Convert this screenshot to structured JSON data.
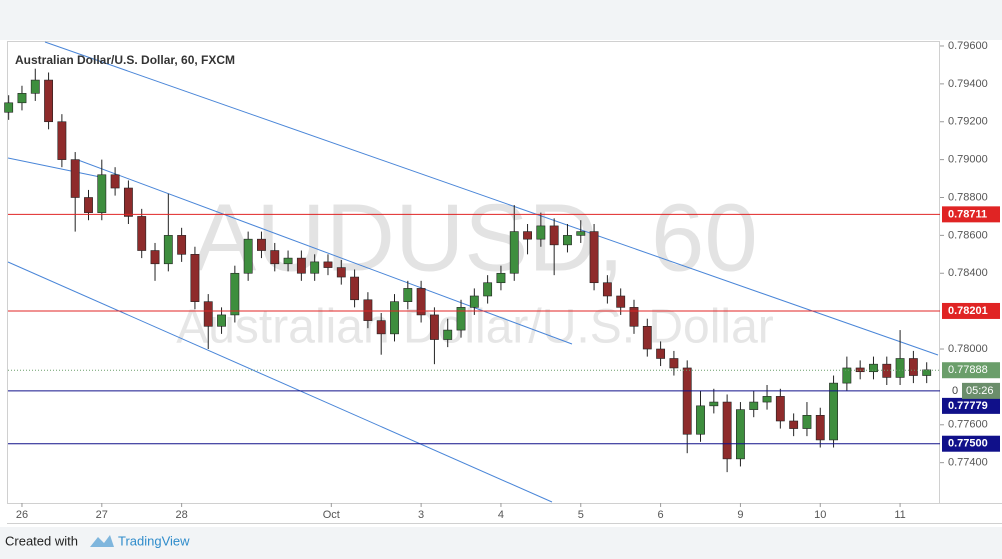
{
  "chart_data": {
    "type": "candlestick",
    "title": "Australian Dollar/U.S. Dollar, 60, FXCM",
    "watermark": {
      "symbol": "AUDUSD, 60",
      "description": "Australian Dollar/U.S. Dollar"
    },
    "up_color": "#3e8e3e",
    "down_color": "#8e2b2b",
    "x": [
      -4,
      0,
      4,
      8,
      12,
      16,
      20,
      24,
      28,
      32,
      36,
      40,
      44,
      48,
      52,
      56,
      60,
      64,
      68,
      72,
      76,
      80,
      84,
      88,
      92,
      96,
      100,
      104,
      108,
      112,
      116,
      120,
      124,
      128,
      132,
      136,
      140,
      144,
      148,
      152,
      156,
      160,
      164,
      168,
      172,
      176,
      180,
      184,
      188,
      192,
      196,
      200,
      204,
      208,
      212,
      216,
      220,
      224,
      228,
      232,
      236,
      240,
      244,
      248,
      252,
      256,
      260,
      264,
      268,
      272
    ],
    "open": [
      0.7925,
      0.793,
      0.7935,
      0.7942,
      0.792,
      0.79,
      0.788,
      0.7872,
      0.7892,
      0.7885,
      0.787,
      0.7852,
      0.7845,
      0.786,
      0.785,
      0.7825,
      0.7812,
      0.7818,
      0.784,
      0.7858,
      0.7852,
      0.7845,
      0.7848,
      0.784,
      0.7846,
      0.7843,
      0.7838,
      0.7826,
      0.7815,
      0.7808,
      0.7825,
      0.7832,
      0.7818,
      0.7805,
      0.781,
      0.7822,
      0.7828,
      0.7835,
      0.784,
      0.7862,
      0.7858,
      0.7865,
      0.7855,
      0.786,
      0.7862,
      0.7835,
      0.7828,
      0.7822,
      0.7812,
      0.78,
      0.7795,
      0.779,
      0.7755,
      0.777,
      0.7772,
      0.7742,
      0.7768,
      0.7772,
      0.7775,
      0.7762,
      0.7758,
      0.7765,
      0.7752,
      0.7782,
      0.779,
      0.7788,
      0.7792,
      0.7785,
      0.7795,
      0.7786
    ],
    "high": [
      0.7934,
      0.7939,
      0.7948,
      0.7946,
      0.7924,
      0.7904,
      0.7884,
      0.79,
      0.7896,
      0.7889,
      0.7874,
      0.7856,
      0.7882,
      0.7864,
      0.7854,
      0.7829,
      0.7822,
      0.7844,
      0.7862,
      0.7862,
      0.7856,
      0.7852,
      0.7852,
      0.785,
      0.785,
      0.7847,
      0.7842,
      0.783,
      0.7819,
      0.7829,
      0.7836,
      0.7836,
      0.7822,
      0.7816,
      0.7826,
      0.7832,
      0.7839,
      0.7844,
      0.7876,
      0.7866,
      0.7872,
      0.7869,
      0.7866,
      0.7868,
      0.7866,
      0.7839,
      0.7832,
      0.7826,
      0.7816,
      0.7804,
      0.7799,
      0.7794,
      0.7778,
      0.7779,
      0.7776,
      0.7772,
      0.7778,
      0.7781,
      0.7779,
      0.7766,
      0.7772,
      0.7769,
      0.7786,
      0.7796,
      0.7794,
      0.7796,
      0.7796,
      0.781,
      0.7799,
      0.7793
    ],
    "low": [
      0.7921,
      0.7926,
      0.7931,
      0.7916,
      0.7896,
      0.7862,
      0.7868,
      0.7868,
      0.7881,
      0.7866,
      0.7848,
      0.7836,
      0.7841,
      0.7846,
      0.7821,
      0.78,
      0.7808,
      0.7814,
      0.7836,
      0.7848,
      0.7841,
      0.7841,
      0.7836,
      0.7836,
      0.7839,
      0.7834,
      0.7822,
      0.7811,
      0.7797,
      0.7804,
      0.7821,
      0.7814,
      0.7792,
      0.7801,
      0.7806,
      0.7818,
      0.7824,
      0.7831,
      0.7836,
      0.785,
      0.7854,
      0.7839,
      0.7851,
      0.7856,
      0.7831,
      0.7824,
      0.7818,
      0.7808,
      0.7796,
      0.7791,
      0.7786,
      0.7745,
      0.7751,
      0.7766,
      0.7735,
      0.7738,
      0.7764,
      0.7768,
      0.7758,
      0.7754,
      0.7754,
      0.7748,
      0.7748,
      0.7778,
      0.7784,
      0.7784,
      0.7781,
      0.7781,
      0.7782,
      0.7782
    ],
    "close": [
      0.793,
      0.7935,
      0.7942,
      0.792,
      0.79,
      0.788,
      0.7872,
      0.7892,
      0.7885,
      0.787,
      0.7852,
      0.7845,
      0.786,
      0.785,
      0.7825,
      0.7812,
      0.7818,
      0.784,
      0.7858,
      0.7852,
      0.7845,
      0.7848,
      0.784,
      0.7846,
      0.7843,
      0.7838,
      0.7826,
      0.7815,
      0.7808,
      0.7825,
      0.7832,
      0.7818,
      0.7805,
      0.781,
      0.7822,
      0.7828,
      0.7835,
      0.784,
      0.7862,
      0.7858,
      0.7865,
      0.7855,
      0.786,
      0.7862,
      0.7835,
      0.7828,
      0.7822,
      0.7812,
      0.78,
      0.7795,
      0.779,
      0.7755,
      0.777,
      0.7772,
      0.7742,
      0.7768,
      0.7772,
      0.7775,
      0.7762,
      0.7758,
      0.7765,
      0.7752,
      0.7782,
      0.779,
      0.7788,
      0.7792,
      0.7785,
      0.7795,
      0.7786,
      0.7789
    ],
    "xlim": [
      -4.2,
      276
    ],
    "xticks": [
      {
        "value": 0,
        "label": "26"
      },
      {
        "value": 24,
        "label": "27"
      },
      {
        "value": 48,
        "label": "28"
      },
      {
        "value": 93,
        "label": "Oct"
      },
      {
        "value": 120,
        "label": "3"
      },
      {
        "value": 144,
        "label": "4"
      },
      {
        "value": 168,
        "label": "5"
      },
      {
        "value": 192,
        "label": "6"
      },
      {
        "value": 216,
        "label": "9"
      },
      {
        "value": 240,
        "label": "10"
      },
      {
        "value": 264,
        "label": "11"
      }
    ],
    "ylim": [
      0.77187,
      0.79621
    ],
    "yticks": [
      {
        "value": 0.796,
        "label": "0.79600"
      },
      {
        "value": 0.794,
        "label": "0.79400"
      },
      {
        "value": 0.792,
        "label": "0.79200"
      },
      {
        "value": 0.79,
        "label": "0.79000"
      },
      {
        "value": 0.788,
        "label": "0.78800"
      },
      {
        "value": 0.786,
        "label": "0.78600"
      },
      {
        "value": 0.784,
        "label": "0.78400"
      },
      {
        "value": 0.78,
        "label": "0.78000"
      },
      {
        "value": 0.776,
        "label": "0.77600"
      },
      {
        "value": 0.774,
        "label": "0.77400"
      }
    ],
    "levels": [
      {
        "value": 0.78711,
        "color": "#e02424"
      },
      {
        "value": 0.78201,
        "color": "#e02424"
      },
      {
        "value": 0.77779,
        "color": "#10108a"
      },
      {
        "value": 0.775,
        "label": "0.77500",
        "color": "#10108a"
      }
    ],
    "last_price": {
      "value": 0.77888,
      "color": "#6a9e6a"
    },
    "countdown": {
      "prefix": "0",
      "time": "05:26"
    }
  },
  "footer": {
    "created": "Created with",
    "brand": "TradingView"
  }
}
